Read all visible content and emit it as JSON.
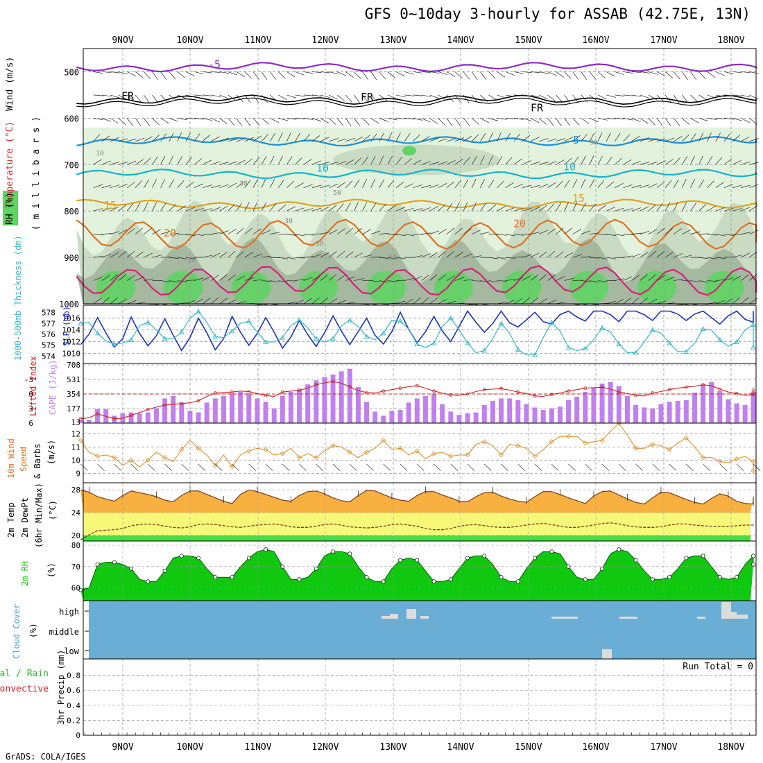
{
  "title": "GFS 0~10day 3-hourly for ASSAB (42.75E, 13N)",
  "footer": "GrADS: COLA/IGES",
  "days": [
    "9NOV",
    "10NOV",
    "11NOV",
    "12NOV",
    "13NOV",
    "14NOV",
    "15NOV",
    "16NOV",
    "17NOV",
    "18NOV"
  ],
  "colors": {
    "rh_light": "#e3f2dc",
    "rh_mid": "#c9dcc3",
    "rh_dark": "#a5b8a0",
    "rh_green": "#5fd363",
    "temp_m5": "#8c2bc8",
    "temp_0": "#000000",
    "temp_5": "#1790d8",
    "temp_10": "#10b5cc",
    "temp_15": "#e0a020",
    "temp_20": "#e07020",
    "temp_25": "#d8207a",
    "slp": "#1a32c0",
    "thickness": "#30b8c8",
    "cape": "#c080f0",
    "lifted": "#d02020",
    "wind10": "#e09028",
    "temp_fill": "#f8b040",
    "td_fill": "#f8f878",
    "green_fill": "#40e040",
    "rh2m": "#10c810",
    "cloud": "#6aaed6"
  },
  "chart_data": [
    {
      "type": "contour",
      "panel": "upper-air",
      "title": "Wind (m/s) / Temperature (°C) / RH (%)",
      "ylabel": "millibars",
      "y_ticks": [
        "500",
        "600",
        "700",
        "800",
        "900",
        "1000"
      ],
      "ylim": [
        450,
        1000
      ],
      "label_wind": "Wind (m/s)",
      "label_temp": "Temperature (°C)",
      "label_rh": "RH (%)",
      "label_mb": "( m i l l i b a r s )",
      "contour_labels": [
        "-5",
        "FR",
        "FR",
        "FR",
        "5",
        "10",
        "10",
        "15",
        "15",
        "20",
        "20",
        "10",
        "30",
        "50",
        "30",
        "50",
        "30",
        "50",
        "30"
      ],
      "isotherms": [
        {
          "name": "-5",
          "level": 490
        },
        {
          "name": "0",
          "level": 560
        },
        {
          "name": "5",
          "level": 650
        },
        {
          "name": "10",
          "level": 720
        },
        {
          "name": "15",
          "level": 785
        },
        {
          "name": "20",
          "level": 850
        },
        {
          "name": "25",
          "level": 950
        }
      ]
    },
    {
      "type": "line",
      "panel": "slp-thickness",
      "title": "SLP (mb) / 1000-500mb Thickness (dm)",
      "label_slp": "SLP (mb)",
      "label_thick": "1000-500mb Thickness (dm)",
      "slp_ticks": [
        "1016",
        "1014",
        "1012",
        "1010"
      ],
      "slp_ylim": [
        1009,
        1017.5
      ],
      "thick_ticks": [
        "578",
        "577",
        "576",
        "575",
        "574"
      ],
      "thick_ylim": [
        573.7,
        578.3
      ],
      "series": [
        {
          "name": "SLP",
          "values": [
            1011.5,
            1013.3,
            1016.1,
            1013.5,
            1011.1,
            1012.5,
            1016.2,
            1013.4,
            1011.3,
            1013.0,
            1015.9,
            1013.1,
            1010.5,
            1012.7,
            1016.0,
            1013.5,
            1010.6,
            1012.5,
            1016.3,
            1013.6,
            1011.4,
            1013.4,
            1016.1,
            1013.6,
            1010.9,
            1012.8,
            1015.6,
            1013.2,
            1011.2,
            1013.5,
            1016.4,
            1013.8,
            1011.5,
            1013.7,
            1016.0,
            1013.1,
            1011.6,
            1013.7,
            1017.0,
            1014.1,
            1011.8,
            1013.7,
            1016.3,
            1013.8,
            1012.0,
            1014.6,
            1017.6,
            1015.3,
            1013.6,
            1015.1,
            1017.2,
            1015.2,
            1014.5,
            1015.7,
            1017.0,
            1015.4,
            1015.0,
            1016.6,
            1018.5,
            1016.2,
            1015.5,
            1017.4,
            1018.5,
            1016.6,
            1015.4,
            1017.3,
            1018.5,
            1016.6,
            1015.6,
            1017.4,
            1018.0,
            1016.7,
            1015.6,
            1016.7,
            1017.9,
            1016.1,
            1015.0,
            1016.4,
            1017.4,
            1015.8,
            1015.3,
            1016.6,
            1017.8
          ]
        },
        {
          "name": "Thickness",
          "values": [
            577.0,
            577.1,
            576.1,
            575.4,
            575.1,
            575.2,
            575.5,
            576.8,
            577.1,
            576.4,
            575.6,
            575.6,
            576.2,
            577.5,
            578.1,
            577.1,
            575.8,
            575.7,
            576.3,
            577.0,
            577.2,
            576.2,
            575.3,
            575.3,
            575.7,
            576.8,
            577.3,
            576.6,
            575.6,
            575.3,
            575.6,
            576.8,
            577.3,
            576.7,
            575.8,
            575.5,
            576.1,
            577.3,
            577.2,
            576.5,
            575.1,
            574.8,
            575.2,
            576.7,
            577.5,
            576.4,
            575.2,
            574.3,
            574.5,
            575.6,
            577.0,
            576.1,
            574.6,
            574.1,
            574.1,
            575.7,
            577.1,
            576.3,
            574.8,
            574.5,
            574.7,
            575.5,
            576.6,
            576.2,
            575.1,
            574.3,
            574.3,
            575.3,
            576.4,
            576.1,
            575.2,
            574.4,
            574.4,
            575.2,
            576.5,
            576.4,
            575.5,
            574.9,
            575.3,
            576.4,
            576.9,
            576.2,
            574.8
          ]
        }
      ]
    },
    {
      "type": "bar",
      "panel": "cape-lifted",
      "title": "CAPE (J/kg) / Lifted Index",
      "label_li": "Lifted Index",
      "label_cape": "CAPE (J/kg)",
      "li_ticks": [
        "-3",
        "0",
        "3",
        "6"
      ],
      "li_ylim": [
        -6,
        6
      ],
      "cape_ticks": [
        "708",
        "531",
        "354",
        "177",
        "13"
      ],
      "cape_ylim": [
        0,
        708
      ],
      "cape_values": [
        40,
        40,
        170,
        170,
        90,
        120,
        130,
        120,
        130,
        180,
        300,
        330,
        250,
        150,
        130,
        250,
        300,
        330,
        360,
        380,
        360,
        300,
        260,
        180,
        330,
        380,
        410,
        470,
        520,
        560,
        590,
        630,
        660,
        440,
        260,
        140,
        90,
        150,
        160,
        250,
        300,
        330,
        360,
        230,
        140,
        100,
        120,
        130,
        220,
        270,
        300,
        300,
        280,
        230,
        190,
        160,
        180,
        200,
        280,
        320,
        380,
        430,
        480,
        500,
        450,
        330,
        220,
        190,
        180,
        230,
        260,
        270,
        280,
        370,
        460,
        500,
        390,
        290,
        240,
        220,
        300,
        340,
        380
      ],
      "lifted_values": [
        5.1,
        4.9,
        4.1,
        4.6,
        5.1,
        5.0,
        4.4,
        3.8,
        3.2,
        2.7,
        2.3,
        2.1,
        2.0,
        1.8,
        1.4,
        0.5,
        -0.2,
        -0.3,
        -0.4,
        -0.6,
        -0.5,
        -0.1,
        0.3,
        0.5,
        -0.4,
        -0.6,
        -0.8,
        -1.2,
        -1.9,
        -2.3,
        -2.6,
        -2.2,
        -1.5,
        -0.7,
        -0.3,
        -0.2,
        -0.6,
        -0.9,
        -1.2,
        -1.5,
        -1.7,
        -1.2,
        -0.6,
        -0.2,
        0.2,
        0.3,
        0.0,
        -0.5,
        -0.9,
        -1.0,
        -1.1,
        -0.8,
        -0.4,
        -0.1,
        0.4,
        0.5,
        0.1,
        -0.2,
        -0.6,
        -0.9,
        -1.2,
        -1.3,
        -1.4,
        -1.0,
        -0.4,
        -0.1,
        0.3,
        0.4,
        -0.2,
        -0.5,
        -0.9,
        -1.2,
        -1.4,
        -1.6,
        -1.9,
        -1.7,
        -1.0,
        -0.4,
        -0.1,
        0.3,
        0.1,
        -0.3,
        -0.8
      ]
    },
    {
      "type": "line",
      "panel": "wind10m",
      "title": "10m Wind Speed & Barbs (m/s)",
      "label_a": "10m Wind",
      "label_b": "Speed",
      "label_c": "& Barbs",
      "label_unit": "(m/s)",
      "ticks": [
        "12",
        "11",
        "10",
        "9"
      ],
      "ylim": [
        8.5,
        12.6
      ],
      "series": [
        {
          "name": "10m wind speed",
          "values": [
            11.5,
            10.6,
            10.3,
            10.4,
            10.2,
            9.6,
            10.0,
            9.5,
            10.0,
            10.6,
            10.2,
            9.9,
            10.8,
            11.5,
            10.9,
            10.4,
            9.6,
            10.4,
            9.5,
            10.4,
            10.7,
            10.9,
            10.8,
            10.4,
            10.5,
            10.9,
            10.2,
            10.5,
            10.2,
            10.7,
            11.1,
            11.0,
            10.6,
            10.2,
            10.6,
            10.9,
            11.5,
            10.8,
            10.9,
            10.4,
            10.7,
            10.1,
            10.5,
            10.6,
            10.3,
            10.4,
            10.4,
            11.2,
            11.4,
            11.1,
            10.4,
            11.2,
            11.1,
            10.9,
            10.3,
            10.8,
            11.4,
            11.8,
            11.8,
            11.8,
            11.3,
            11.4,
            11.5,
            12.2,
            12.8,
            11.9,
            10.9,
            10.9,
            11.2,
            11.1,
            10.8,
            11.3,
            11.7,
            11.0,
            10.2,
            10.2,
            9.9,
            9.8,
            10.1,
            10.3,
            9.9,
            9.1,
            9.2
          ]
        }
      ]
    },
    {
      "type": "area",
      "panel": "temp2m",
      "title": "2m Temp / 2m DewPt (6hr Min/Max) (°C)",
      "label_a": "2m Temp",
      "label_b": "2m DewPt",
      "label_c": "(6hr Min/Max)",
      "label_unit": "(°C)",
      "ticks": [
        "28",
        "24",
        "20"
      ],
      "ylim": [
        19,
        29
      ],
      "series": [
        {
          "name": "2m Temp",
          "values": [
            28.0,
            27.6,
            26.8,
            26.4,
            26.0,
            27.0,
            27.8,
            27.5,
            27.2,
            26.8,
            26.2,
            25.9,
            27.0,
            27.8,
            27.8,
            27.2,
            26.6,
            26.0,
            25.6,
            27.2,
            28.0,
            27.7,
            27.2,
            26.7,
            26.2,
            26.0,
            27.0,
            27.7,
            27.8,
            27.3,
            26.6,
            26.1,
            25.9,
            27.0,
            27.9,
            27.8,
            27.2,
            26.6,
            26.2,
            26.0,
            27.0,
            27.7,
            27.7,
            27.1,
            26.6,
            26.0,
            25.9,
            26.8,
            27.5,
            27.6,
            26.9,
            26.4,
            26.0,
            25.8,
            26.8,
            27.7,
            27.7,
            27.2,
            26.6,
            26.1,
            25.6,
            26.9,
            27.7,
            27.8,
            27.1,
            26.4,
            25.8,
            25.5,
            26.6,
            27.6,
            27.5,
            26.9,
            26.3,
            25.8,
            25.5,
            26.5,
            27.3,
            26.9,
            26.0,
            25.6,
            25.5,
            25.4,
            26.8
          ]
        },
        {
          "name": "2m DewPt",
          "values": [
            19.2,
            20.1,
            20.8,
            20.9,
            21.0,
            21.2,
            21.7,
            21.9,
            22.0,
            21.9,
            21.6,
            21.4,
            21.3,
            21.5,
            21.9,
            22.0,
            21.9,
            21.7,
            21.5,
            21.4,
            21.6,
            21.8,
            21.9,
            22.0,
            21.8,
            21.5,
            21.4,
            21.4,
            21.6,
            21.9,
            22.0,
            21.8,
            21.5,
            21.4,
            21.3,
            21.4,
            21.6,
            21.9,
            22.0,
            21.8,
            21.6,
            21.2,
            21.0,
            21.0,
            21.2,
            21.6,
            21.8,
            21.9,
            21.7,
            21.5,
            21.4,
            21.4,
            21.6,
            21.8,
            22.0,
            22.1,
            21.9,
            21.6,
            21.4,
            21.4,
            21.6,
            21.8,
            22.1,
            22.2,
            22.0,
            21.7,
            21.5,
            21.4,
            21.4,
            21.5,
            21.8,
            22.0,
            22.0,
            21.8,
            21.7,
            21.6,
            21.6,
            21.6,
            21.7,
            21.8,
            21.8,
            21.8,
            21.7
          ]
        }
      ]
    },
    {
      "type": "area",
      "panel": "rh2m",
      "title": "2m RH (%)",
      "label_a": "2m RH",
      "label_unit": "(%)",
      "ticks": [
        "80",
        "70",
        "60"
      ],
      "ylim": [
        54,
        80
      ],
      "series": [
        {
          "name": "2m RH",
          "values": [
            59,
            60,
            71,
            72,
            72,
            71,
            69,
            64,
            63,
            63,
            68,
            74,
            75,
            75,
            74,
            69,
            65,
            65,
            65,
            70,
            74,
            77,
            78,
            77,
            70,
            64,
            64,
            65,
            69,
            75,
            77,
            77,
            76,
            70,
            65,
            63,
            63,
            69,
            73,
            74,
            73,
            68,
            63,
            63,
            64,
            69,
            74,
            75,
            75,
            71,
            65,
            63,
            63,
            69,
            74,
            77,
            77,
            76,
            70,
            65,
            64,
            64,
            69,
            76,
            78,
            77,
            73,
            68,
            64,
            64,
            65,
            69,
            74,
            75,
            75,
            70,
            65,
            64,
            65,
            71,
            75,
            76,
            71
          ]
        }
      ]
    },
    {
      "type": "bar",
      "panel": "cloud-cover",
      "title": "Cloud Cover (%)",
      "label_a": "Cloud Cover",
      "label_unit": "(%)",
      "ticks": [
        "high",
        "middle",
        "low"
      ]
    },
    {
      "type": "bar",
      "panel": "precip",
      "title": "3hr Precip (mm)",
      "label_a": "Total / Rain",
      "label_b": "Convective",
      "label_unit": "3hr Precip (mm)",
      "ticks": [
        "0.8",
        "0.6",
        "0.4",
        "0.2",
        "0"
      ],
      "ylim": [
        0,
        1.0
      ],
      "run_total": "Run Total = 0",
      "values": []
    }
  ]
}
